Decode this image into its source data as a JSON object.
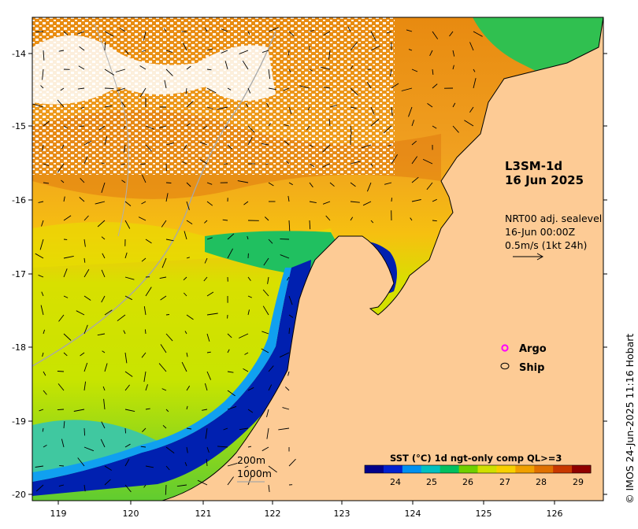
{
  "product": {
    "line1": "L3SM-1d",
    "line2": "16 Jun 2025"
  },
  "currents": {
    "line1": "NRT00 adj. sealevel",
    "line2": "16-Jun 00:00Z",
    "line3": "0.5m/s (1kt 24h)"
  },
  "legend": {
    "argo": "Argo",
    "ship": "Ship",
    "argo_color": "#ff00ff"
  },
  "isobaths": {
    "shallow": "200m",
    "deep": "1000m"
  },
  "colorbar": {
    "title": "SST (°C) 1d ngt-only comp QL>=3",
    "ticks": [
      "24",
      "25",
      "26",
      "27",
      "28",
      "29"
    ],
    "colors": [
      "#00008a",
      "#0020d0",
      "#0090f0",
      "#00c0c0",
      "#00c060",
      "#70d000",
      "#d0e000",
      "#f8d000",
      "#f0a000",
      "#e07000",
      "#c83800",
      "#900000"
    ]
  },
  "axes": {
    "x_ticks": [
      "119",
      "120",
      "121",
      "122",
      "123",
      "124",
      "125",
      "126"
    ],
    "y_ticks": [
      "-14",
      "-15",
      "-16",
      "-17",
      "-18",
      "-19",
      "-20"
    ]
  },
  "colors": {
    "land": "#fdcb95",
    "cloud": "#ffffff"
  },
  "credit": "© IMOS 24-Jun-2025 11:16 Hobart"
}
